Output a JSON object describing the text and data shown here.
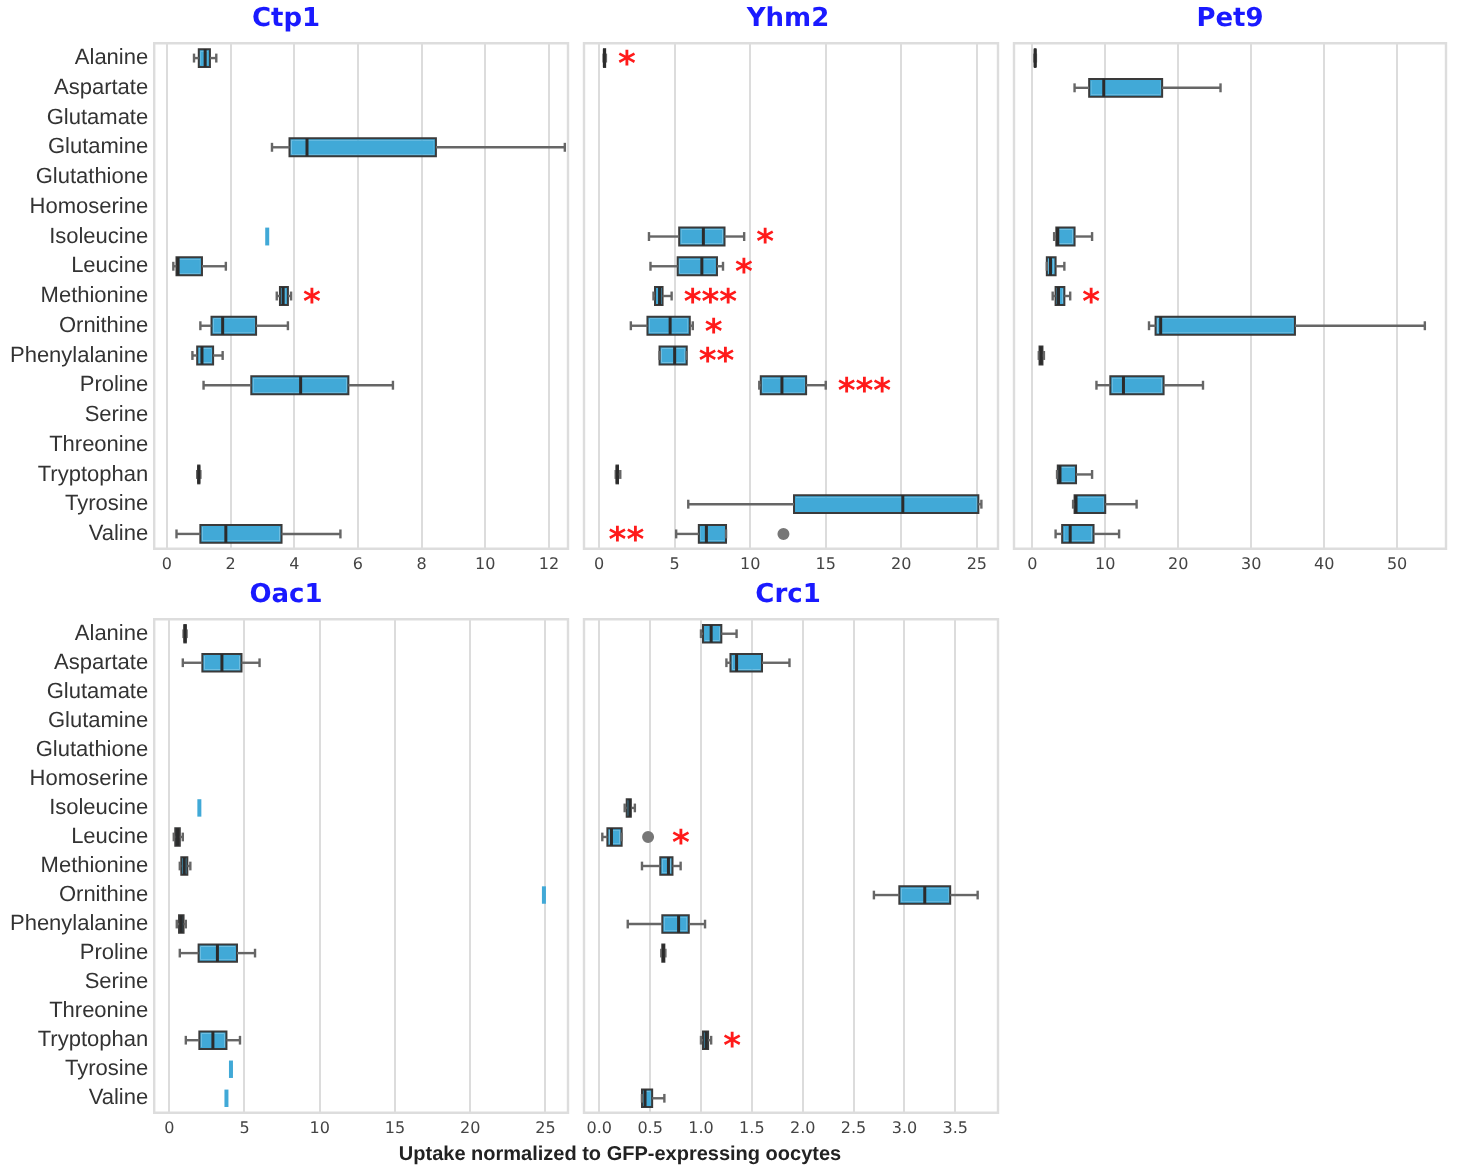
{
  "chart_data": [
    {
      "type": "box",
      "title": "Ctp1",
      "orientation": "horizontal",
      "grid": "x",
      "categories": [
        "Alanine",
        "Aspartate",
        "Glutamate",
        "Glutamine",
        "Glutathione",
        "Homoserine",
        "Isoleucine",
        "Leucine",
        "Methionine",
        "Ornithine",
        "Phenylalanine",
        "Proline",
        "Serine",
        "Threonine",
        "Tryptophan",
        "Tyrosine",
        "Valine"
      ],
      "xlim": [
        -0.4,
        12.6
      ],
      "xticks": [
        0,
        2,
        4,
        6,
        8,
        10,
        12
      ],
      "series": [
        {
          "color": "#41a9d7",
          "boxes": [
            {
              "low": 0.85,
              "q1": 1.0,
              "median": 1.2,
              "q3": 1.35,
              "high": 1.55
            },
            null,
            null,
            {
              "low": 3.3,
              "q1": 3.85,
              "median": 4.4,
              "q3": 8.45,
              "high": 12.5
            },
            null,
            null,
            {
              "low": 3.15,
              "q1": 3.15,
              "median": 3.15,
              "q3": 3.15,
              "high": 3.15
            },
            {
              "low": 0.2,
              "q1": 0.3,
              "median": 0.35,
              "q3": 1.1,
              "high": 1.85
            },
            {
              "low": 3.45,
              "q1": 3.55,
              "median": 3.65,
              "q3": 3.8,
              "high": 3.9
            },
            {
              "low": 1.05,
              "q1": 1.4,
              "median": 1.75,
              "q3": 2.8,
              "high": 3.8
            },
            {
              "low": 0.8,
              "q1": 0.95,
              "median": 1.1,
              "q3": 1.45,
              "high": 1.75
            },
            {
              "low": 1.15,
              "q1": 2.65,
              "median": 4.2,
              "q3": 5.7,
              "high": 7.1
            },
            null,
            null,
            {
              "low": 0.95,
              "q1": 0.98,
              "median": 1.0,
              "q3": 1.02,
              "high": 1.05
            },
            null,
            {
              "low": 0.3,
              "q1": 1.05,
              "median": 1.85,
              "q3": 3.6,
              "high": 5.45
            }
          ]
        }
      ],
      "annotations": [
        {
          "text": "*",
          "x": 3.9,
          "y": "Methionine"
        }
      ]
    },
    {
      "type": "box",
      "title": "Yhm2",
      "orientation": "horizontal",
      "grid": "x",
      "tick_labels": "x",
      "categories": [
        "Alanine",
        "Aspartate",
        "Glutamate",
        "Glutamine",
        "Glutathione",
        "Homoserine",
        "Isoleucine",
        "Leucine",
        "Methionine",
        "Ornithine",
        "Phenylalanine",
        "Proline",
        "Serine",
        "Threonine",
        "Tryptophan",
        "Tyrosine",
        "Valine"
      ],
      "xlim": [
        -1,
        26.4
      ],
      "xticks": [
        0,
        5,
        10,
        15,
        20,
        25
      ],
      "series": [
        {
          "color": "#41a9d7",
          "boxes": [
            {
              "low": 0.3,
              "q1": 0.32,
              "median": 0.35,
              "q3": 0.4,
              "high": 0.45
            },
            null,
            null,
            null,
            null,
            null,
            {
              "low": 3.3,
              "q1": 5.3,
              "median": 6.9,
              "q3": 8.3,
              "high": 9.6
            },
            {
              "low": 3.4,
              "q1": 5.2,
              "median": 6.8,
              "q3": 7.8,
              "high": 8.2
            },
            {
              "low": 3.6,
              "q1": 3.7,
              "median": 4.0,
              "q3": 4.2,
              "high": 4.8
            },
            {
              "low": 2.1,
              "q1": 3.2,
              "median": 4.7,
              "q3": 6.0,
              "high": 6.2
            },
            {
              "low": 4.0,
              "q1": 4.0,
              "median": 5.0,
              "q3": 5.8,
              "high": 5.8
            },
            {
              "low": 10.6,
              "q1": 10.7,
              "median": 12.1,
              "q3": 13.7,
              "high": 15.0
            },
            null,
            null,
            {
              "low": 1.1,
              "q1": 1.15,
              "median": 1.2,
              "q3": 1.25,
              "high": 1.4
            },
            {
              "low": 5.9,
              "q1": 12.9,
              "median": 20.1,
              "q3": 25.1,
              "high": 25.3
            },
            {
              "low": 5.1,
              "q1": 6.6,
              "median": 7.1,
              "q3": 8.4,
              "high": 8.4,
              "outliers": [
                12.2
              ]
            }
          ]
        }
      ],
      "annotations": [
        {
          "text": "*",
          "x": 0.45,
          "y": "Alanine"
        },
        {
          "text": "*",
          "x": 9.6,
          "y": "Isoleucine"
        },
        {
          "text": "*",
          "x": 8.2,
          "y": "Leucine"
        },
        {
          "text": "***",
          "x": 4.8,
          "y": "Methionine"
        },
        {
          "text": "*",
          "x": 6.2,
          "y": "Ornithine"
        },
        {
          "text": "**",
          "x": 5.8,
          "y": "Phenylalanine"
        },
        {
          "text": "***",
          "x": 15.0,
          "y": "Proline"
        },
        {
          "text": "**",
          "x": 5.1,
          "y": "Valine"
        }
      ]
    },
    {
      "type": "box",
      "title": "Pet9",
      "orientation": "horizontal",
      "grid": "x",
      "tick_labels": "x",
      "categories": [
        "Alanine",
        "Aspartate",
        "Glutamate",
        "Glutamine",
        "Glutathione",
        "Homoserine",
        "Isoleucine",
        "Leucine",
        "Methionine",
        "Ornithine",
        "Phenylalanine",
        "Proline",
        "Serine",
        "Threonine",
        "Tryptophan",
        "Tyrosine",
        "Valine"
      ],
      "xlim": [
        -2.5,
        56.7
      ],
      "xticks": [
        0,
        10,
        20,
        30,
        40,
        50
      ],
      "series": [
        {
          "color": "#41a9d7",
          "boxes": [
            {
              "low": 0.3,
              "q1": 0.35,
              "median": 0.4,
              "q3": 0.45,
              "high": 0.5
            },
            {
              "low": 5.8,
              "q1": 7.8,
              "median": 9.8,
              "q3": 17.8,
              "high": 25.8
            },
            null,
            null,
            null,
            null,
            {
              "low": 3.0,
              "q1": 3.3,
              "median": 3.5,
              "q3": 5.8,
              "high": 8.2
            },
            {
              "low": 2.0,
              "q1": 2.0,
              "median": 2.5,
              "q3": 3.2,
              "high": 4.4
            },
            {
              "low": 2.8,
              "q1": 3.2,
              "median": 3.6,
              "q3": 4.4,
              "high": 5.2
            },
            {
              "low": 16.0,
              "q1": 16.9,
              "median": 17.6,
              "q3": 36.0,
              "high": 53.8
            },
            {
              "low": 0.9,
              "q1": 1.0,
              "median": 1.2,
              "q3": 1.4,
              "high": 1.6
            },
            {
              "low": 8.8,
              "q1": 10.7,
              "median": 12.5,
              "q3": 18.0,
              "high": 23.4
            },
            null,
            null,
            {
              "low": 3.4,
              "q1": 3.5,
              "median": 3.8,
              "q3": 6.0,
              "high": 8.2
            },
            {
              "low": 5.6,
              "q1": 5.8,
              "median": 6.0,
              "q3": 10.0,
              "high": 14.3
            },
            {
              "low": 3.2,
              "q1": 4.1,
              "median": 5.2,
              "q3": 8.4,
              "high": 11.9
            }
          ]
        }
      ],
      "annotations": [
        {
          "text": "*",
          "x": 5.2,
          "y": "Methionine"
        }
      ]
    },
    {
      "type": "box",
      "title": "Oac1",
      "orientation": "horizontal",
      "grid": "x",
      "xlabel": "Uptake normalized to GFP-expressing oocytes",
      "categories": [
        "Alanine",
        "Aspartate",
        "Glutamate",
        "Glutamine",
        "Glutathione",
        "Homoserine",
        "Isoleucine",
        "Leucine",
        "Methionine",
        "Ornithine",
        "Phenylalanine",
        "Proline",
        "Serine",
        "Threonine",
        "Tryptophan",
        "Tyrosine",
        "Valine"
      ],
      "xlim": [
        -1,
        26.5
      ],
      "xticks": [
        0,
        5,
        10,
        15,
        20,
        25
      ],
      "series": [
        {
          "color": "#41a9d7",
          "boxes": [
            {
              "low": 0.95,
              "q1": 1.0,
              "median": 1.05,
              "q3": 1.1,
              "high": 1.15
            },
            {
              "low": 0.9,
              "q1": 2.2,
              "median": 3.5,
              "q3": 4.8,
              "high": 6.0
            },
            null,
            null,
            null,
            null,
            {
              "low": 2.0,
              "q1": 2.0,
              "median": 2.0,
              "q3": 2.0,
              "high": 2.0
            },
            {
              "low": 0.3,
              "q1": 0.4,
              "median": 0.55,
              "q3": 0.7,
              "high": 0.9
            },
            {
              "low": 0.7,
              "q1": 0.8,
              "median": 1.0,
              "q3": 1.2,
              "high": 1.4
            },
            {
              "low": 24.9,
              "q1": 24.9,
              "median": 24.9,
              "q3": 24.9,
              "high": 24.9
            },
            {
              "low": 0.5,
              "q1": 0.65,
              "median": 0.8,
              "q3": 0.95,
              "high": 1.1
            },
            {
              "low": 0.7,
              "q1": 1.95,
              "median": 3.2,
              "q3": 4.5,
              "high": 5.7
            },
            null,
            null,
            {
              "low": 1.1,
              "q1": 2.0,
              "median": 2.9,
              "q3": 3.8,
              "high": 4.7
            },
            {
              "low": 4.1,
              "q1": 4.1,
              "median": 4.1,
              "q3": 4.1,
              "high": 4.1
            },
            {
              "low": 3.8,
              "q1": 3.8,
              "median": 3.8,
              "q3": 3.8,
              "high": 3.8
            }
          ]
        }
      ]
    },
    {
      "type": "box",
      "title": "Crc1",
      "orientation": "horizontal",
      "grid": "x",
      "tick_labels": "x",
      "categories": [
        "Alanine",
        "Aspartate",
        "Glutamate",
        "Glutamine",
        "Glutathione",
        "Homoserine",
        "Isoleucine",
        "Leucine",
        "Methionine",
        "Ornithine",
        "Phenylalanine",
        "Proline",
        "Serine",
        "Threonine",
        "Tryptophan",
        "Tyrosine",
        "Valine"
      ],
      "xlim": [
        -0.15,
        3.92
      ],
      "xticks": [
        {
          "value": 0,
          "label": "0.0"
        },
        0.5,
        {
          "value": 1,
          "label": "1.0"
        },
        1.5,
        {
          "value": 2,
          "label": "2.0"
        },
        2.5,
        {
          "value": 3,
          "label": "3.0"
        },
        3.5
      ],
      "series": [
        {
          "color": "#41a9d7",
          "boxes": [
            {
              "low": 1.0,
              "q1": 1.02,
              "median": 1.1,
              "q3": 1.2,
              "high": 1.35
            },
            {
              "low": 1.25,
              "q1": 1.29,
              "median": 1.35,
              "q3": 1.6,
              "high": 1.87
            },
            null,
            null,
            null,
            null,
            {
              "low": 0.25,
              "q1": 0.27,
              "median": 0.3,
              "q3": 0.31,
              "high": 0.35
            },
            {
              "low": 0.03,
              "q1": 0.08,
              "median": 0.12,
              "q3": 0.22,
              "high": 0.22,
              "outliers": [
                0.48
              ]
            },
            {
              "low": 0.42,
              "q1": 0.6,
              "median": 0.68,
              "q3": 0.72,
              "high": 0.8
            },
            {
              "low": 2.7,
              "q1": 2.95,
              "median": 3.2,
              "q3": 3.45,
              "high": 3.72
            },
            {
              "low": 0.28,
              "q1": 0.62,
              "median": 0.78,
              "q3": 0.88,
              "high": 1.04
            },
            {
              "low": 0.61,
              "q1": 0.62,
              "median": 0.63,
              "q3": 0.64,
              "high": 0.65
            },
            null,
            null,
            {
              "low": 1.0,
              "q1": 1.02,
              "median": 1.05,
              "q3": 1.07,
              "high": 1.1
            },
            null,
            {
              "low": 0.42,
              "q1": 0.42,
              "median": 0.45,
              "q3": 0.52,
              "high": 0.64
            }
          ]
        }
      ],
      "annotations": [
        {
          "text": "*",
          "x": 0.22,
          "y": "Leucine"
        },
        {
          "text": "*",
          "x": 1.1,
          "y": "Tryptophan"
        }
      ]
    }
  ]
}
